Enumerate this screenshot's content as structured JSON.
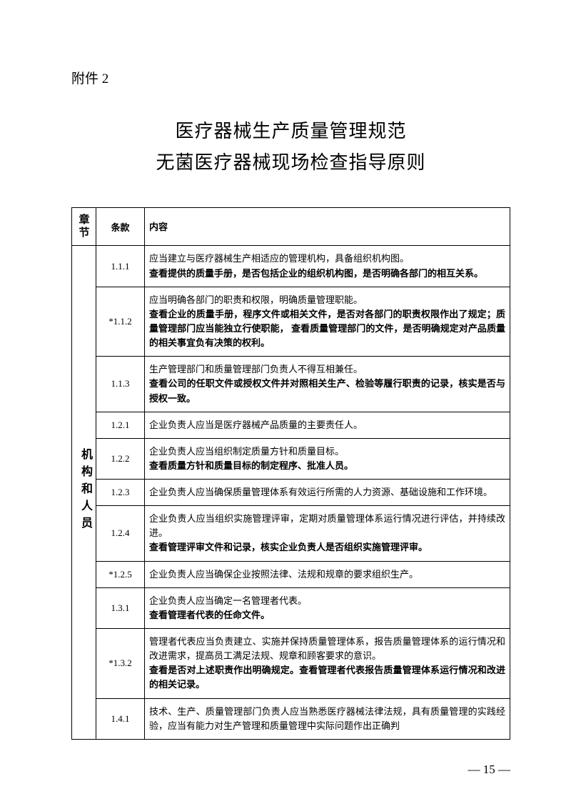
{
  "attachment_label": "附件 2",
  "title_line1": "医疗器械生产质量管理规范",
  "title_line2": "无菌医疗器械现场检查指导原则",
  "headers": {
    "chapter": "章节",
    "clause": "条款",
    "content": "内容"
  },
  "chapter_label": "机构和人员",
  "rows": [
    {
      "clause": "1.1.1",
      "plain": "应当建立与医疗器械生产相适应的管理机构，具备组织机构图。",
      "bold": "查看提供的质量手册，是否包括企业的组织机构图，是否明确各部门的相互关系。"
    },
    {
      "clause": "*1.1.2",
      "plain": "应当明确各部门的职责和权限，明确质量管理职能。",
      "bold": "查看企业的质量手册，程序文件或相关文件，是否对各部门的职责权限作出了规定；质量管理部门应当能独立行使职能，  查看质量管理部门的文件，是否明确规定对产品质量的相关事宜负有决策的权利。"
    },
    {
      "clause": "1.1.3",
      "plain": "生产管理部门和质量管理部门负责人不得互相兼任。",
      "bold": "查看公司的任职文件或授权文件并对照相关生产、检验等履行职责的记录，核实是否与授权一致。"
    },
    {
      "clause": "1.2.1",
      "plain": "企业负责人应当是医疗器械产品质量的主要责任人。",
      "bold": ""
    },
    {
      "clause": "1.2.2",
      "plain": "企业负责人应当组织制定质量方针和质量目标。",
      "bold": "查看质量方针和质量目标的制定程序、批准人员。"
    },
    {
      "clause": "1.2.3",
      "plain": "企业负责人应当确保质量管理体系有效运行所需的人力资源、基础设施和工作环境。",
      "bold": ""
    },
    {
      "clause": "1.2.4",
      "plain": "企业负责人应当组织实施管理评审，定期对质量管理体系运行情况进行评估，并持续改进。",
      "bold": "查看管理评审文件和记录，核实企业负责人是否组织实施管理评审。"
    },
    {
      "clause": "*1.2.5",
      "plain": "企业负责人应当确保企业按照法律、法规和规章的要求组织生产。",
      "bold": ""
    },
    {
      "clause": "1.3.1",
      "plain": "企业负责人应当确定一名管理者代表。",
      "bold": "查看管理者代表的任命文件。"
    },
    {
      "clause": "*1.3.2",
      "plain": "管理者代表应当负责建立、实施并保持质量管理体系，报告质量管理体系的运行情况和改进需求，提高员工满足法规、规章和顾客要求的意识。",
      "bold": "查看是否对上述职责作出明确规定。查看管理者代表报告质量管理体系运行情况和改进的相关记录。"
    },
    {
      "clause": "1.4.1",
      "plain": "技术、生产、质量管理部门负责人应当熟悉医疗器械法律法规，具有质量管理的实践经验，应当有能力对生产管理和质量管理中实际问题作出正确判",
      "bold": ""
    }
  ],
  "page_number": "— 15 —"
}
